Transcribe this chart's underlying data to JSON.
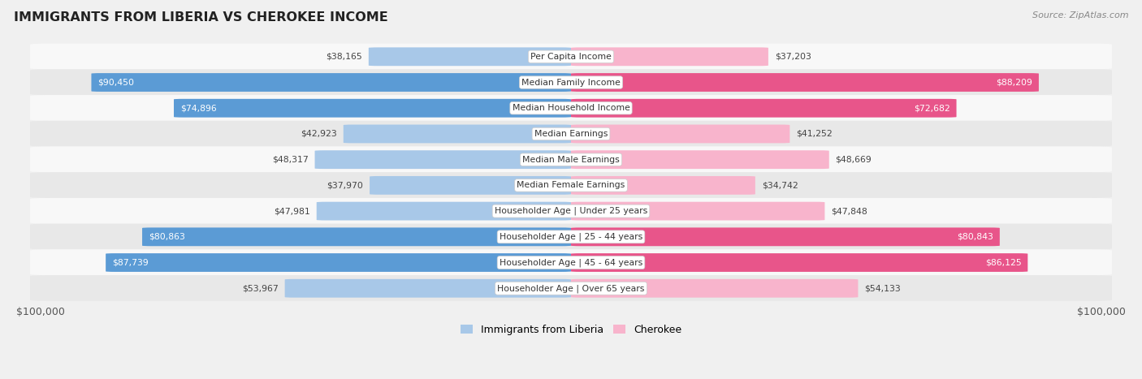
{
  "title": "IMMIGRANTS FROM LIBERIA VS CHEROKEE INCOME",
  "source": "Source: ZipAtlas.com",
  "categories": [
    "Per Capita Income",
    "Median Family Income",
    "Median Household Income",
    "Median Earnings",
    "Median Male Earnings",
    "Median Female Earnings",
    "Householder Age | Under 25 years",
    "Householder Age | 25 - 44 years",
    "Householder Age | 45 - 64 years",
    "Householder Age | Over 65 years"
  ],
  "liberia_values": [
    38165,
    90450,
    74896,
    42923,
    48317,
    37970,
    47981,
    80863,
    87739,
    53967
  ],
  "cherokee_values": [
    37203,
    88209,
    72682,
    41252,
    48669,
    34742,
    47848,
    80843,
    86125,
    54133
  ],
  "liberia_labels": [
    "$38,165",
    "$90,450",
    "$74,896",
    "$42,923",
    "$48,317",
    "$37,970",
    "$47,981",
    "$80,863",
    "$87,739",
    "$53,967"
  ],
  "cherokee_labels": [
    "$37,203",
    "$88,209",
    "$72,682",
    "$41,252",
    "$48,669",
    "$34,742",
    "$47,848",
    "$80,843",
    "$86,125",
    "$54,133"
  ],
  "max_value": 100000,
  "liberia_color_light": "#a8c8e8",
  "liberia_color_dark": "#5b9bd5",
  "cherokee_color_light": "#f8b4cc",
  "cherokee_color_dark": "#e8558a",
  "bg_color": "#f0f0f0",
  "row_bg_odd": "#f8f8f8",
  "row_bg_even": "#e8e8e8",
  "label_dark_threshold": 65000,
  "figsize": [
    14.06,
    4.67
  ],
  "dpi": 100
}
